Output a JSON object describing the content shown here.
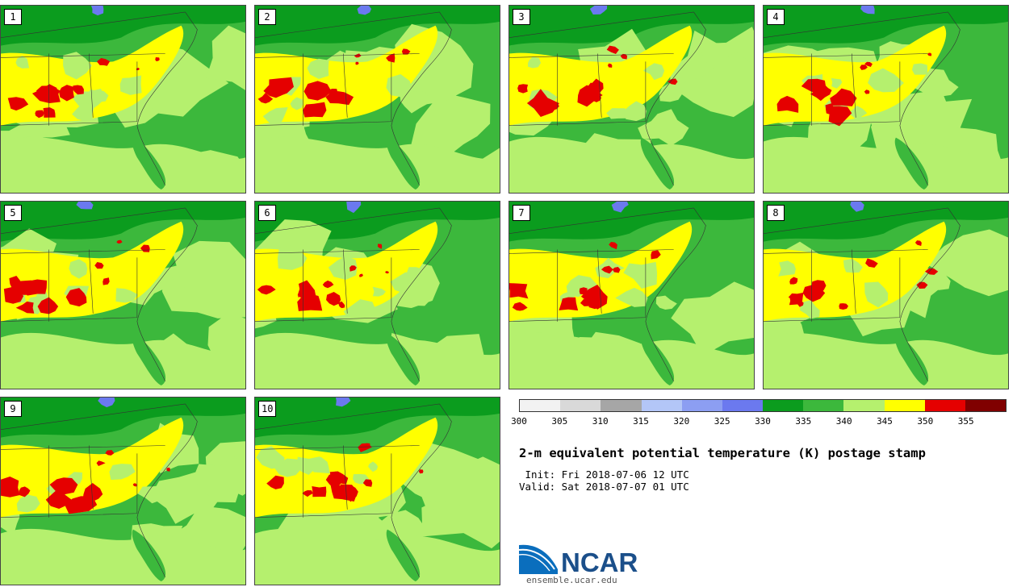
{
  "panels": [
    {
      "label": "1"
    },
    {
      "label": "2"
    },
    {
      "label": "3"
    },
    {
      "label": "4"
    },
    {
      "label": "5"
    },
    {
      "label": "6"
    },
    {
      "label": "7"
    },
    {
      "label": "8"
    },
    {
      "label": "9"
    },
    {
      "label": "10"
    }
  ],
  "legend": {
    "colors": [
      "#f2f2f2",
      "#d9d9d9",
      "#a6a6a6",
      "#b3c6f7",
      "#8c9ef2",
      "#6b79ef",
      "#0b9c1e",
      "#3cb83c",
      "#b5f06e",
      "#ffff00",
      "#e50000",
      "#800000"
    ],
    "ticks": [
      "300",
      "305",
      "310",
      "315",
      "320",
      "325",
      "330",
      "335",
      "340",
      "345",
      "350",
      "355"
    ]
  },
  "title": "2-m equivalent potential temperature (K) postage stamp",
  "init_text": " Init: Fri 2018-07-06 12 UTC",
  "valid_text": "Valid: Sat 2018-07-07 01 UTC",
  "logo": {
    "text": "NCAR",
    "url": "ensemble.ucar.edu",
    "colors": {
      "blue": "#0a6ebd",
      "text": "#1b4f8a"
    }
  }
}
